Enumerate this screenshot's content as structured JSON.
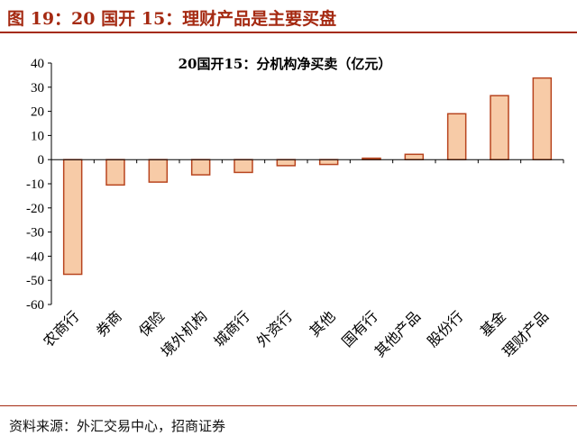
{
  "figure": {
    "title": "图 19：20 国开 15：理财产品是主要买盘",
    "source": "资料来源：外汇交易中心，招商证券",
    "accent_color": "#a52a12"
  },
  "chart_data": {
    "type": "bar",
    "title": "20国开15：分机构净买卖（亿元）",
    "xlabel": "",
    "ylabel": "",
    "categories": [
      "农商行",
      "券商",
      "保险",
      "境外机构",
      "城商行",
      "外资行",
      "其他",
      "国有行",
      "其他产品",
      "股份行",
      "基金",
      "理财产品"
    ],
    "values": [
      -47.5,
      -10.5,
      -9.3,
      -6.3,
      -5.3,
      -2.5,
      -2.0,
      0.6,
      2.2,
      19.0,
      26.5,
      33.8
    ],
    "ylim": [
      -60,
      40
    ],
    "yticks": [
      "40",
      "30",
      "20",
      "10",
      "0",
      "-10",
      "-20",
      "-30",
      "-40",
      "-50",
      "-60"
    ],
    "ytick_values": [
      40,
      30,
      20,
      10,
      0,
      -10,
      -20,
      -30,
      -40,
      -50,
      -60
    ],
    "bar_fill": "#f7cba7",
    "bar_stroke": "#b8451f",
    "grid": false,
    "legend": "none"
  }
}
